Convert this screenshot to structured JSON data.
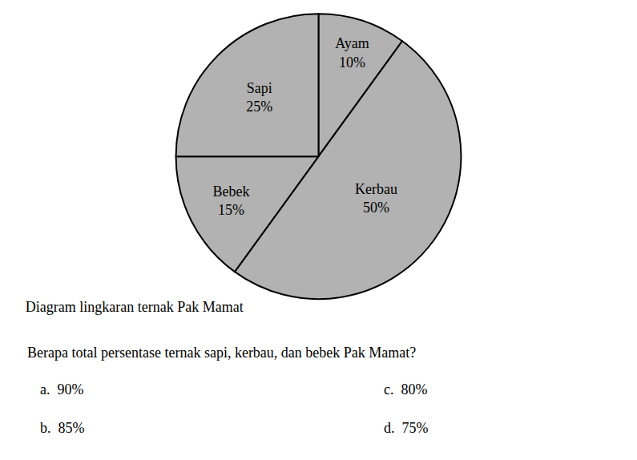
{
  "chart_data": {
    "type": "pie",
    "title": "Diagram lingkaran ternak Pak Mamat",
    "categories": [
      "Ayam",
      "Kerbau",
      "Bebek",
      "Sapi"
    ],
    "values": [
      10,
      50,
      15,
      25
    ],
    "value_labels": [
      "10%",
      "50%",
      "15%",
      "25%"
    ],
    "data_labels": true,
    "color": "#b2b2b2",
    "annotations": [
      "Berapa total persentase ternak sapi, kerbau, dan bebek Pak Mamat?",
      "a.  90%",
      "b.  85%",
      "c.  80%",
      "d.  75%"
    ]
  }
}
